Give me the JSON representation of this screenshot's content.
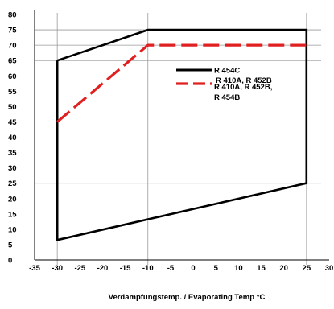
{
  "chart_data": {
    "type": "line",
    "title": "",
    "xlabel": "Verdampfungstemp. / Evaporating Temp °C",
    "ylabel": "",
    "xlim": [
      -35,
      30
    ],
    "ylim": [
      0,
      80
    ],
    "grid": true,
    "x_ticks": [
      -35,
      -30,
      -25,
      -20,
      -15,
      -10,
      -5,
      0,
      5,
      10,
      15,
      20,
      25,
      30
    ],
    "x_tick_labels": [
      "-35",
      "-30",
      "-25",
      "-20",
      "-15",
      "-10",
      "-5",
      "0",
      "5",
      "10",
      "15",
      "20",
      "25",
      "30"
    ],
    "y_ticks": [
      0,
      5,
      10,
      15,
      20,
      25,
      30,
      35,
      40,
      45,
      50,
      55,
      60,
      65,
      70,
      75,
      80
    ],
    "y_tick_labels": [
      "0",
      "5",
      "10",
      "15",
      "20",
      "25",
      "30",
      "35",
      "40",
      "45",
      "50",
      "55",
      "60",
      "65",
      "70",
      "75",
      "80"
    ],
    "x_gridlines": [
      -30,
      -10,
      25
    ],
    "y_gridlines": [
      25,
      65,
      70,
      75
    ],
    "legend_position": "top-right",
    "series": [
      {
        "name": "R 454C",
        "color": "#000000",
        "style": "solid",
        "x": [
          -30,
          -10,
          25,
          25,
          -30,
          -30
        ],
        "y": [
          65,
          75,
          75,
          25,
          6.5,
          65
        ]
      },
      {
        "name": "R 410A, R 452B, R 454B",
        "color": "#e02020",
        "style": "dashed",
        "x": [
          -30,
          -10,
          25
        ],
        "y": [
          45,
          70,
          70
        ]
      }
    ],
    "legend_ghost_text": "R 410A, R 452B"
  }
}
